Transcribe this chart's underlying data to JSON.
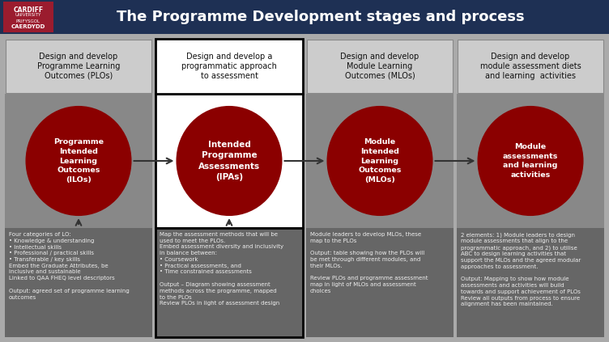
{
  "title": "The Programme Development stages and process",
  "title_color": "#ffffff",
  "title_bg": "#1e3054",
  "logo_bg": "#9b1c2e",
  "main_bg": "#aaaaaa",
  "mid_bg": "#888888",
  "bottom_bg": "#666666",
  "header_bg": "#cccccc",
  "circle_color": "#8b0000",
  "columns": [
    {
      "header": "Design and develop\nProgramme Learning\nOutcomes (PLOs)",
      "circle_text": "Programme\nIntended\nLearning\nOutcomes\n(ILOs)",
      "bottom_text": "Four categories of LO:\n• Knowledge & understanding\n• Intellectual skills\n• Professional / practical skills\n• Transferable / key skills\nEmbed the Graduate Attributes, be\ninclusive and sustainable\nLinked to QAA FHEQ level descriptors\n\nOutput: agreed set of programme learning\noutcomes",
      "highlighted": false
    },
    {
      "header": "Design and develop a\nprogrammatic approach\nto assessment",
      "circle_text": "Intended\nProgramme\nAssessments\n(IPAs)",
      "bottom_text": "Map the assessment methods that will be\nused to meet the PLOs.\nEmbed assessment diversity and inclusivity\nin balance between:\n• Coursework\n• Practical assessments, and\n• Time constrained assessments\n\nOutput – Diagram showing assessment\nmethods across the programme, mapped\nto the PLOs\nReview PLOs in light of assessment design",
      "highlighted": true
    },
    {
      "header": "Design and develop\nModule Learning\nOutcomes (MLOs)",
      "circle_text": "Module\nIntended\nLearning\nOutcomes\n(MLOs)",
      "bottom_text": "Module leaders to develop MLOs, these\nmap to the PLOs\n\nOutput: table showing how the PLOs will\nbe met through different modules, and\ntheir MLOs.\n\nReview PLOs and programme assessment\nmap in light of MLOs and assessment\nchoices",
      "highlighted": false
    },
    {
      "header": "Design and develop\nmodule assessment diets\nand learning  activities",
      "circle_text": "Module\nassessments\nand learning\nactivities",
      "bottom_text": "2 elements: 1) Module leaders to design\nmodule assessments that align to the\nprogrammatic approach, and 2) to utilise\nABC to design learning activities that\nsupport the MLOs and the agreed modular\napproaches to assessment.\n\nOutput: Mapping to show how module\nassessments and activities will build\ntowards and support achievement of PLOs\nReview all outputs from process to ensure\nalignment has been maintained.",
      "highlighted": false
    }
  ]
}
